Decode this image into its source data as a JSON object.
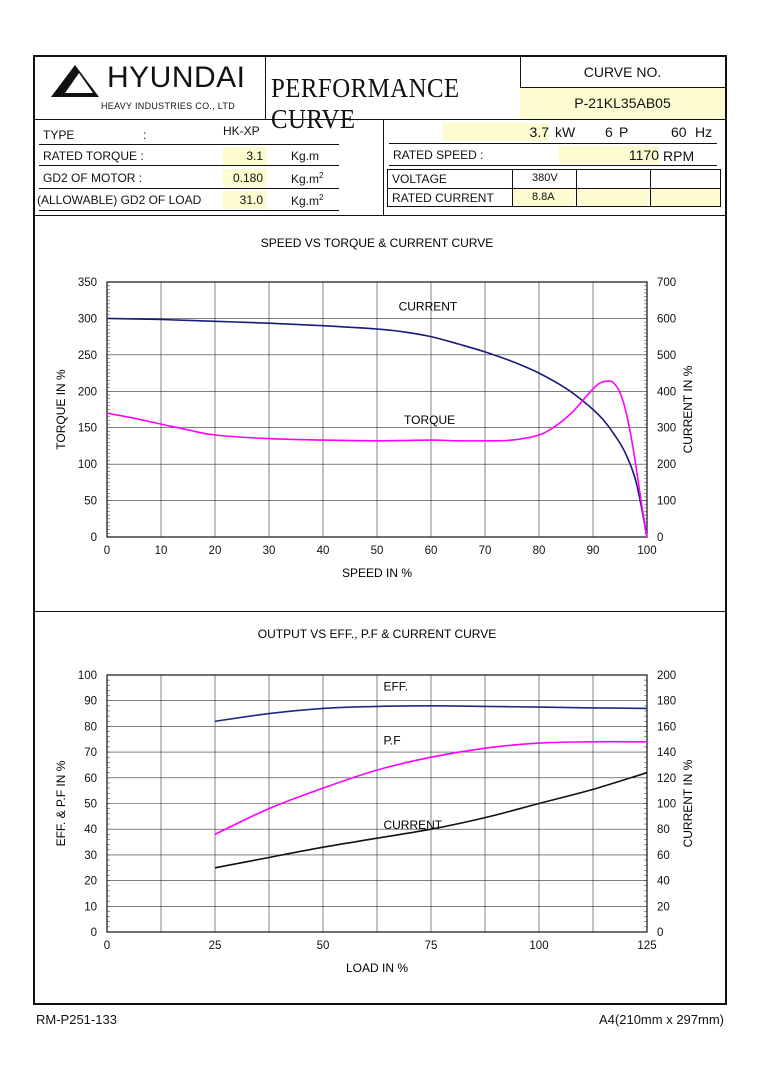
{
  "header": {
    "brand": "HYUNDAI",
    "brand_sub": "HEAVY INDUSTRIES CO., LTD",
    "doc_title": "PERFORMANCE CURVE",
    "curve_no_label": "CURVE NO.",
    "curve_no": "P-21KL35AB05"
  },
  "specs": {
    "type_label": "TYPE",
    "type_colon": ":",
    "type_value": "HK-XP",
    "rated_torque_label": "RATED TORQUE :",
    "rated_torque_value": "3.1",
    "rated_torque_unit": "Kg.m",
    "gd2_motor_label": "GD2 OF MOTOR :",
    "gd2_motor_value": "0.180",
    "gd2_motor_unit": "Kg.m",
    "gd2_load_label": "(ALLOWABLE) GD2 OF LOAD",
    "gd2_load_value": "31.0",
    "gd2_load_unit": "Kg.m",
    "unit_exp": "2",
    "power_value": "3.7",
    "power_unit": "kW",
    "poles_value": "6",
    "poles_unit": "P",
    "freq_value": "60",
    "freq_unit": "Hz",
    "rated_speed_label": "RATED   SPEED :",
    "rated_speed_value": "1170",
    "rated_speed_unit": "RPM",
    "voltage_label": "VOLTAGE",
    "voltage_value": "380V",
    "rated_current_label": "RATED CURRENT",
    "rated_current_value": "8.8A"
  },
  "footer": {
    "left": "RM-P251-133",
    "right": "A4(210mm x 297mm)"
  },
  "colors": {
    "current": "#1a1a7a",
    "torque": "#ff00ff",
    "eff": "#1a2a80",
    "pf": "#ff00ff",
    "current2": "#111111",
    "highlight": "#fdfbd0"
  },
  "chart_data": [
    {
      "type": "line",
      "title": "SPEED VS TORQUE & CURRENT CURVE",
      "xlabel": "SPEED IN %",
      "ylabel": "TORQUE IN %",
      "y2label": "CURRENT IN %",
      "xlim": [
        0,
        100
      ],
      "ylim": [
        0,
        350
      ],
      "y2lim": [
        0,
        700
      ],
      "xticks": [
        "0",
        "10",
        "20",
        "30",
        "40",
        "50",
        "60",
        "70",
        "80",
        "90",
        "100"
      ],
      "yticks": [
        "0",
        "50",
        "100",
        "150",
        "200",
        "250",
        "300",
        "350"
      ],
      "y2ticks": [
        "0",
        "100",
        "200",
        "300",
        "400",
        "500",
        "600",
        "700"
      ],
      "grid": true,
      "series": [
        {
          "name": "CURRENT",
          "axis": "y2",
          "x": [
            0,
            10,
            20,
            30,
            40,
            50,
            55,
            60,
            65,
            70,
            75,
            80,
            85,
            88,
            90,
            92,
            94,
            96,
            98,
            100
          ],
          "y": [
            600,
            597,
            592,
            587,
            580,
            571,
            563,
            550,
            530,
            508,
            482,
            450,
            408,
            375,
            350,
            320,
            280,
            230,
            150,
            0
          ]
        },
        {
          "name": "TORQUE",
          "axis": "y",
          "x": [
            0,
            5,
            10,
            15,
            20,
            30,
            40,
            50,
            60,
            65,
            70,
            75,
            80,
            83,
            86,
            89,
            91,
            93,
            94,
            95,
            96,
            97,
            98,
            99,
            100
          ],
          "y": [
            170,
            163,
            155,
            147,
            140,
            135,
            133,
            132,
            133,
            132,
            132,
            133,
            140,
            152,
            170,
            195,
            210,
            214,
            210,
            198,
            175,
            140,
            95,
            45,
            0
          ]
        }
      ]
    },
    {
      "type": "line",
      "title": "OUTPUT VS EFF., P.F & CURRENT CURVE",
      "xlabel": "LOAD IN %",
      "ylabel": "EFF. & P.F IN %",
      "y2label": "CURRENT IN %",
      "xlim": [
        0,
        125
      ],
      "ylim": [
        0,
        100
      ],
      "y2lim": [
        0,
        200
      ],
      "xticks": [
        "0",
        "25",
        "50",
        "75",
        "100",
        "125"
      ],
      "yticks": [
        "0",
        "10",
        "20",
        "30",
        "40",
        "50",
        "60",
        "70",
        "80",
        "90",
        "100"
      ],
      "y2ticks": [
        "0",
        "20",
        "40",
        "60",
        "80",
        "100",
        "120",
        "140",
        "160",
        "180",
        "200"
      ],
      "grid": true,
      "series": [
        {
          "name": "EFF.",
          "axis": "y",
          "x": [
            25,
            37.5,
            50,
            62.5,
            75,
            87.5,
            100,
            112.5,
            125
          ],
          "y": [
            82,
            85,
            87,
            87.8,
            88,
            87.8,
            87.5,
            87.2,
            87
          ]
        },
        {
          "name": "P.F",
          "axis": "y",
          "x": [
            25,
            37.5,
            50,
            62.5,
            75,
            87.5,
            100,
            112.5,
            125
          ],
          "y": [
            38,
            48,
            56,
            63,
            68,
            71.5,
            73.5,
            74,
            74
          ]
        },
        {
          "name": "CURRENT",
          "axis": "y2",
          "x": [
            25,
            37.5,
            50,
            62.5,
            75,
            87.5,
            100,
            112.5,
            125
          ],
          "y": [
            50,
            58,
            66,
            73,
            80,
            89,
            100,
            111,
            124
          ]
        }
      ]
    }
  ]
}
